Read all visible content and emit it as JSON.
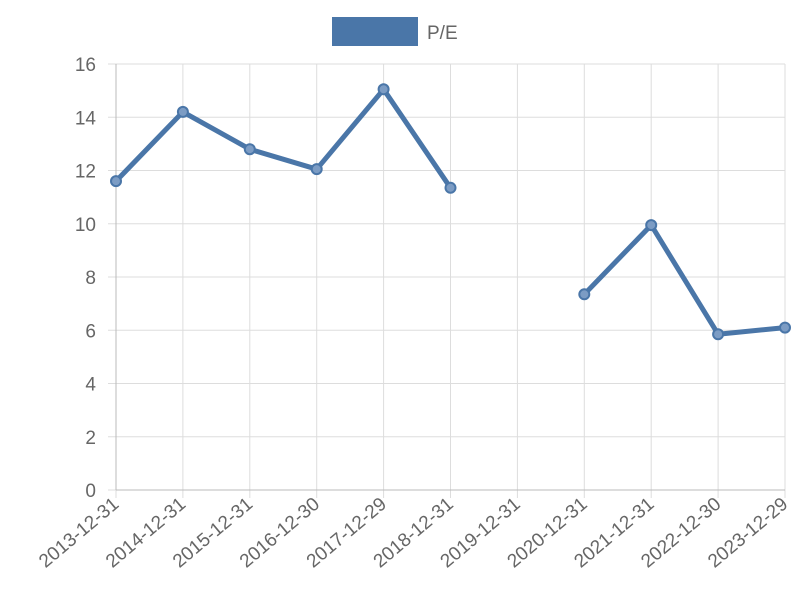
{
  "chart_data": {
    "type": "line",
    "categories": [
      "2013-12-31",
      "2014-12-31",
      "2015-12-31",
      "2016-12-30",
      "2017-12-29",
      "2018-12-31",
      "2019-12-31",
      "2020-12-31",
      "2021-12-31",
      "2022-12-30",
      "2023-12-29"
    ],
    "series": [
      {
        "name": "P/E",
        "color": "#4a76a8",
        "values": [
          11.6,
          14.2,
          12.8,
          12.05,
          15.05,
          11.35,
          null,
          7.35,
          9.95,
          5.85,
          6.1
        ]
      }
    ],
    "ylim": [
      0,
      16
    ],
    "yticks": [
      0,
      2,
      4,
      6,
      8,
      10,
      12,
      14,
      16
    ],
    "grid": true,
    "legend": "top"
  }
}
